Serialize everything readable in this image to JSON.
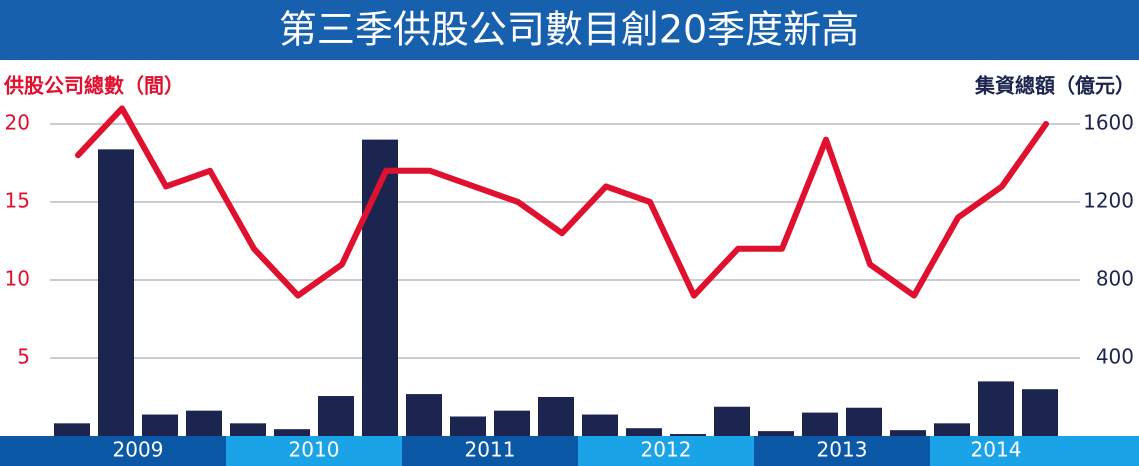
{
  "chart_data": {
    "type": "bar-line",
    "title": "第三季供股公司數目創20季度新高",
    "y_label": "供股公司總數（間）",
    "y2_label": "集資總額（億元）",
    "categories": [
      "2009",
      "2009",
      "2009",
      "2009",
      "2010",
      "2010",
      "2010",
      "2010",
      "2011",
      "2011",
      "2011",
      "2011",
      "2012",
      "2012",
      "2012",
      "2012",
      "2013",
      "2013",
      "2013",
      "2013",
      "2014",
      "2014",
      "2014"
    ],
    "ylim": [
      0,
      20
    ],
    "yticks": [
      5,
      10,
      15,
      20
    ],
    "y2lim": [
      0,
      1600
    ],
    "y2ticks": [
      400,
      800,
      1200,
      1600
    ],
    "grid": true,
    "series": [
      {
        "type": "bar",
        "axis": "y2",
        "color": "#1c2550",
        "values": [
          65,
          1470,
          110,
          130,
          65,
          35,
          205,
          1520,
          215,
          100,
          130,
          200,
          110,
          40,
          10,
          150,
          25,
          120,
          145,
          30,
          65,
          280,
          240
        ]
      },
      {
        "type": "line",
        "axis": "y",
        "color": "#e0102f",
        "values": [
          18,
          21,
          16,
          17,
          12,
          9,
          11,
          17,
          17,
          16,
          15,
          13,
          16,
          15,
          9,
          12,
          12,
          19,
          11,
          9,
          14,
          16,
          20
        ]
      }
    ]
  }
}
